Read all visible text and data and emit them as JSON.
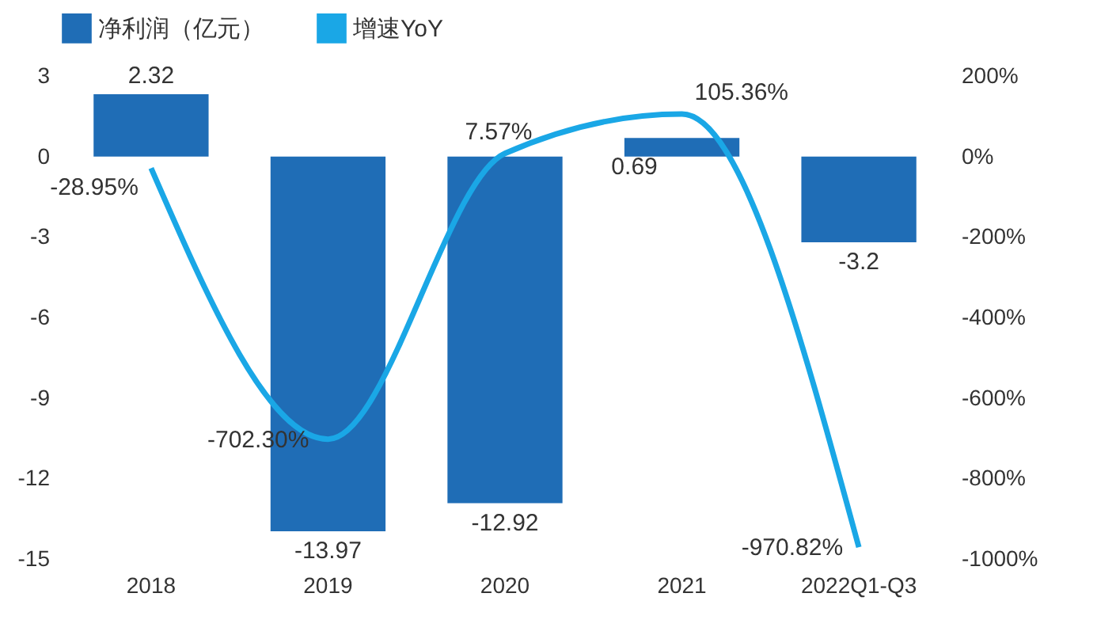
{
  "chart_data": {
    "type": "bar",
    "categories": [
      "2018",
      "2019",
      "2020",
      "2021",
      "2022Q1-Q3"
    ],
    "series": [
      {
        "name": "净利润（亿元）",
        "color": "#1f6db6",
        "values": [
          2.32,
          -13.97,
          -12.92,
          0.69,
          -3.2
        ],
        "value_labels": [
          "2.32",
          "-13.97",
          "-12.92",
          "0.69",
          "-3.2"
        ]
      },
      {
        "name": "增速YoY",
        "type": "line",
        "axis": "y2",
        "color": "#1aa7e6",
        "values": [
          -28.95,
          -702.3,
          7.57,
          105.36,
          -970.82
        ],
        "value_labels": [
          "-28.95%",
          "-702.30%",
          "7.57%",
          "105.36%",
          "-970.82%"
        ]
      }
    ],
    "ylim": [
      -15,
      3
    ],
    "yticks": [
      -15,
      -12,
      -9,
      -6,
      -3,
      0,
      3
    ],
    "y2lim": [
      -1000,
      200
    ],
    "y2ticks": [
      {
        "value": -1000,
        "label": "-1000%"
      },
      {
        "value": -800,
        "label": "-800%"
      },
      {
        "value": -600,
        "label": "-600%"
      },
      {
        "value": -400,
        "label": "-400%"
      },
      {
        "value": -200,
        "label": "-200%"
      },
      {
        "value": 0,
        "label": "0%"
      },
      {
        "value": 200,
        "label": "200%"
      }
    ],
    "legend": "top",
    "grid": false,
    "marker": "none",
    "line_style": "solid"
  }
}
